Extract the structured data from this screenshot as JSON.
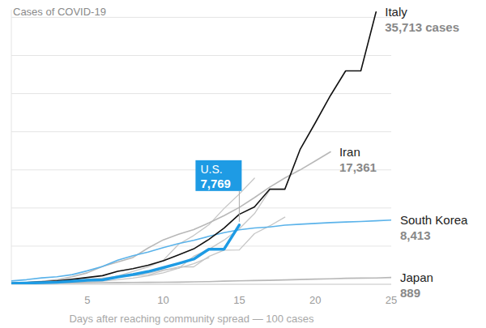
{
  "chart_data": {
    "type": "line",
    "title": "Cases of COVID-19",
    "x_label": "Days after reaching community spread — 100 cases",
    "x": [
      0,
      1,
      2,
      3,
      4,
      5,
      6,
      7,
      8,
      9,
      10,
      11,
      12,
      13,
      14,
      15,
      16,
      17,
      18,
      19,
      20,
      21,
      22,
      23,
      24,
      25
    ],
    "xlim": [
      0,
      25
    ],
    "xticks": [
      5,
      10,
      15,
      20,
      25
    ],
    "ylim": [
      0,
      36000
    ],
    "yticks": [
      0,
      5000,
      10000,
      15000,
      20000,
      25000,
      30000,
      35000
    ],
    "grid": true,
    "tick_labels": "x",
    "series": [
      {
        "color": "#c6c6c6",
        "line_style": "solid",
        "values": [
          120,
          165,
          222,
          259,
          400,
          500,
          673,
          1073,
          1695,
          2277,
          3146,
          5232,
          6391,
          7798,
          9942,
          11826,
          13910,
          null,
          null,
          null,
          null,
          null,
          null,
          null,
          null,
          null
        ]
      },
      {
        "color": "#c6c6c6",
        "line_style": "solid",
        "values": [
          130,
          159,
          196,
          262,
          482,
          670,
          799,
          1040,
          1176,
          1457,
          1908,
          2078,
          3675,
          4585,
          5795,
          7272,
          9257,
          12327,
          null,
          null,
          null,
          null,
          null,
          null,
          null,
          null
        ]
      },
      {
        "color": "#c6c6c6",
        "line_style": "solid",
        "values": [
          100,
          130,
          191,
          204,
          285,
          377,
          653,
          949,
          1126,
          1209,
          1784,
          2281,
          2281,
          3661,
          4469,
          4499,
          6633,
          7652,
          8800,
          null,
          null,
          null,
          null,
          null,
          null,
          null
        ]
      },
      {
        "color": "#c6c6c6",
        "line_style": "solid",
        "values": [
          100,
          110,
          140,
          180,
          220,
          300,
          420,
          600,
          800,
          1100,
          1500,
          2100,
          2700,
          3500,
          null,
          null,
          null,
          null,
          null,
          null,
          null,
          null,
          null,
          null,
          null,
          null
        ]
      },
      {
        "name": "Japan",
        "color": "#b8b8b8",
        "line_style": "solid",
        "values": [
          105,
          132,
          144,
          156,
          164,
          186,
          210,
          230,
          239,
          254,
          268,
          284,
          317,
          349,
          408,
          455,
          488,
          514,
          568,
          619,
          675,
          716,
          780,
          814,
          829,
          889
        ],
        "value_labels": [
          null,
          null,
          null,
          null,
          null,
          null,
          null,
          null,
          null,
          null,
          null,
          null,
          null,
          null,
          null,
          null,
          null,
          null,
          null,
          null,
          null,
          null,
          null,
          null,
          null,
          "889"
        ]
      },
      {
        "name": "Iran",
        "color": "#b8b8b8",
        "line_style": "solid",
        "values": [
          139,
          245,
          388,
          593,
          978,
          1501,
          2336,
          2922,
          3513,
          4747,
          5823,
          6566,
          7161,
          8042,
          9000,
          10075,
          11364,
          12729,
          13938,
          14991,
          16169,
          17361,
          null,
          null,
          null,
          null
        ],
        "value_labels": [
          null,
          null,
          null,
          null,
          null,
          null,
          null,
          null,
          null,
          null,
          null,
          null,
          null,
          null,
          null,
          null,
          null,
          null,
          null,
          null,
          null,
          "17,361",
          null,
          null,
          null,
          null
        ]
      },
      {
        "name": "South Korea",
        "color": "#5bb3ea",
        "line_style": "solid",
        "values": [
          433,
          602,
          833,
          977,
          1261,
          1766,
          2337,
          3150,
          3736,
          4212,
          4812,
          5328,
          5766,
          6284,
          6767,
          7134,
          7382,
          7513,
          7755,
          7869,
          7979,
          8086,
          8162,
          8236,
          8320,
          8413
        ],
        "value_labels": [
          null,
          null,
          null,
          null,
          null,
          null,
          null,
          null,
          null,
          null,
          null,
          null,
          null,
          null,
          null,
          null,
          null,
          null,
          null,
          null,
          null,
          null,
          null,
          null,
          null,
          "8,413"
        ]
      },
      {
        "name": "Italy",
        "color": "#111111",
        "line_style": "solid",
        "values": [
          155,
          229,
          322,
          453,
          655,
          888,
          1128,
          1694,
          2036,
          2502,
          3089,
          3858,
          4636,
          5883,
          7375,
          9172,
          10149,
          12462,
          12462,
          17660,
          21157,
          24747,
          27980,
          27980,
          35713,
          null
        ],
        "value_labels": [
          null,
          null,
          null,
          null,
          null,
          null,
          null,
          null,
          null,
          null,
          null,
          null,
          null,
          null,
          null,
          null,
          null,
          null,
          null,
          null,
          null,
          null,
          null,
          null,
          "35,713 cases",
          null
        ]
      },
      {
        "name": "U.S.",
        "color": "#1e9be4",
        "line_style": "bold",
        "values": [
          118,
          149,
          217,
          262,
          402,
          518,
          583,
          959,
          1281,
          1663,
          2179,
          2726,
          3300,
          4600,
          4600,
          7769,
          null,
          null,
          null,
          null,
          null,
          null,
          null,
          null,
          null,
          null
        ],
        "value_labels": [
          null,
          null,
          null,
          null,
          null,
          null,
          null,
          null,
          null,
          null,
          null,
          null,
          null,
          null,
          null,
          "7,769",
          null,
          null,
          null,
          null,
          null,
          null,
          null,
          null,
          null,
          null
        ]
      }
    ]
  }
}
